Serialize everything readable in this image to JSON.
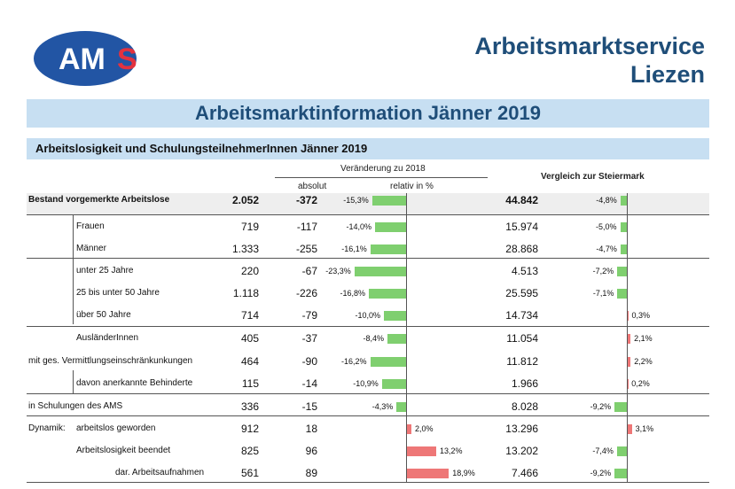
{
  "header": {
    "logo_text": "AMS",
    "org_line1": "Arbeitsmarktservice",
    "org_line2": "Liezen",
    "title": "Arbeitsmarktinformation Jänner 2019",
    "subtitle": "Arbeitslosigkeit und SchulungsteilnehmerInnen Jänner 2019"
  },
  "table": {
    "col_change_header": "Veränderung zu 2018",
    "col_absolut": "absolut",
    "col_relativ": "relativ in %",
    "col_compare": "Vergleich zur Steiermark",
    "rows": [
      {
        "prefix": "",
        "label": "Bestand vorgemerkte Arbeitslose",
        "value": "2.052",
        "abs": "-372",
        "rel": "-15,3%",
        "rel_num": -15.3,
        "st_value": "44.842",
        "st_rel": "-4,8%",
        "st_rel_num": -4.8,
        "bold": true,
        "indent": 0
      },
      {
        "prefix": "",
        "label": "Frauen",
        "value": "719",
        "abs": "-117",
        "rel": "-14,0%",
        "rel_num": -14.0,
        "st_value": "15.974",
        "st_rel": "-5,0%",
        "st_rel_num": -5.0,
        "bold": false,
        "indent": 1
      },
      {
        "prefix": "",
        "label": "Männer",
        "value": "1.333",
        "abs": "-255",
        "rel": "-16,1%",
        "rel_num": -16.1,
        "st_value": "28.868",
        "st_rel": "-4,7%",
        "st_rel_num": -4.7,
        "bold": false,
        "indent": 1
      },
      {
        "prefix": "",
        "label": "unter 25 Jahre",
        "value": "220",
        "abs": "-67",
        "rel": "-23,3%",
        "rel_num": -23.3,
        "st_value": "4.513",
        "st_rel": "-7,2%",
        "st_rel_num": -7.2,
        "bold": false,
        "indent": 1
      },
      {
        "prefix": "",
        "label": "25 bis unter 50 Jahre",
        "value": "1.118",
        "abs": "-226",
        "rel": "-16,8%",
        "rel_num": -16.8,
        "st_value": "25.595",
        "st_rel": "-7,1%",
        "st_rel_num": -7.1,
        "bold": false,
        "indent": 1
      },
      {
        "prefix": "",
        "label": "über 50 Jahre",
        "value": "714",
        "abs": "-79",
        "rel": "-10,0%",
        "rel_num": -10.0,
        "st_value": "14.734",
        "st_rel": "0,3%",
        "st_rel_num": 0.3,
        "bold": false,
        "indent": 1
      },
      {
        "prefix": "",
        "label": "AusländerInnen",
        "value": "405",
        "abs": "-37",
        "rel": "-8,4%",
        "rel_num": -8.4,
        "st_value": "11.054",
        "st_rel": "2,1%",
        "st_rel_num": 2.1,
        "bold": false,
        "indent": 1
      },
      {
        "prefix": "",
        "label": "mit ges. Vermittlungseinschränkunkungen",
        "value": "464",
        "abs": "-90",
        "rel": "-16,2%",
        "rel_num": -16.2,
        "st_value": "11.812",
        "st_rel": "2,2%",
        "st_rel_num": 2.2,
        "bold": false,
        "indent": 0
      },
      {
        "prefix": "",
        "label": "davon anerkannte Behinderte",
        "value": "115",
        "abs": "-14",
        "rel": "-10,9%",
        "rel_num": -10.9,
        "st_value": "1.966",
        "st_rel": "0,2%",
        "st_rel_num": 0.2,
        "bold": false,
        "indent": 1
      },
      {
        "prefix": "",
        "label": "in Schulungen des AMS",
        "value": "336",
        "abs": "-15",
        "rel": "-4,3%",
        "rel_num": -4.3,
        "st_value": "8.028",
        "st_rel": "-9,2%",
        "st_rel_num": -9.2,
        "bold": false,
        "indent": 0
      },
      {
        "prefix": "Dynamik:",
        "label": "arbeitslos geworden",
        "value": "912",
        "abs": "18",
        "rel": "2,0%",
        "rel_num": 2.0,
        "st_value": "13.296",
        "st_rel": "3,1%",
        "st_rel_num": 3.1,
        "bold": false,
        "indent": 1
      },
      {
        "prefix": "",
        "label": "Arbeitslosigkeit beendet",
        "value": "825",
        "abs": "96",
        "rel": "13,2%",
        "rel_num": 13.2,
        "st_value": "13.202",
        "st_rel": "-7,4%",
        "st_rel_num": -7.4,
        "bold": false,
        "indent": 1
      },
      {
        "prefix": "",
        "label": "dar. Arbeitsaufnahmen",
        "value": "561",
        "abs": "89",
        "rel": "18,9%",
        "rel_num": 18.9,
        "st_value": "7.466",
        "st_rel": "-9,2%",
        "st_rel_num": -9.2,
        "bold": false,
        "indent": 2
      }
    ]
  },
  "colors": {
    "brand_blue": "#1f4e79",
    "logo_blue": "#2255a4",
    "logo_red": "#e3323f",
    "header_bg": "#c7dff2",
    "bar_negative": "#7fcf6f",
    "bar_positive": "#ee7777"
  }
}
